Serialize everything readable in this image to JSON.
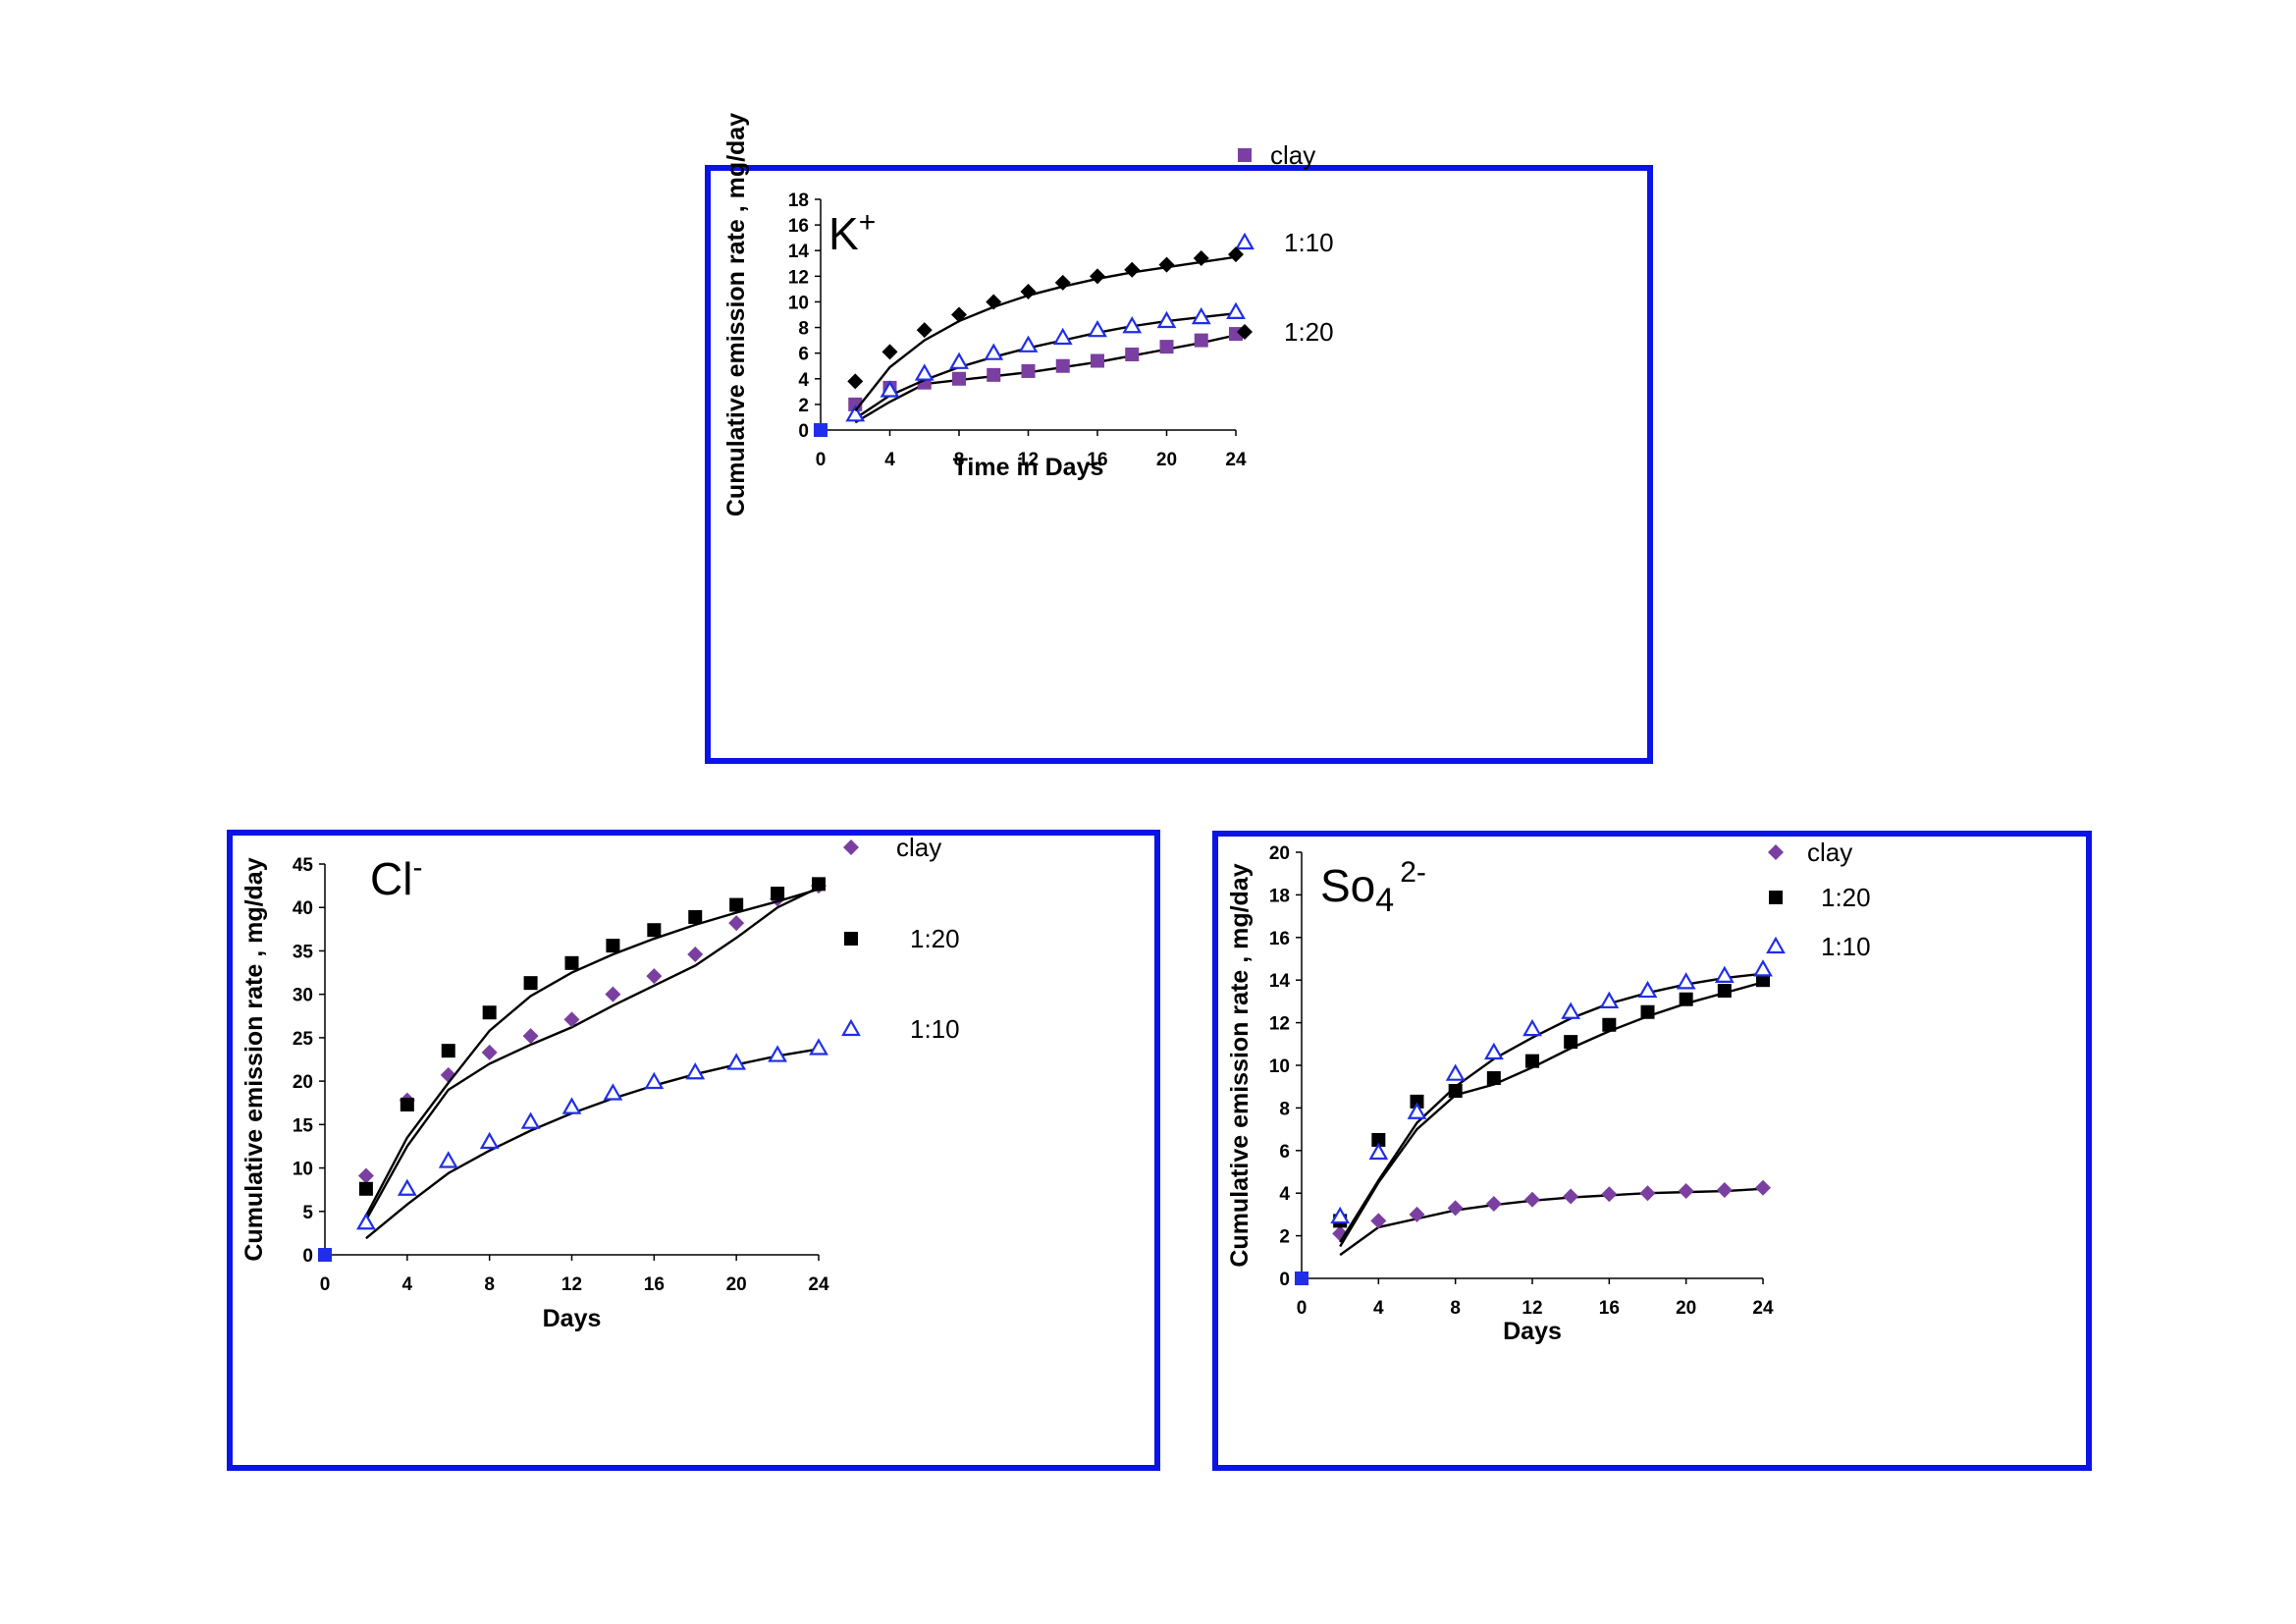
{
  "chart_data": [
    {
      "type": "scatter",
      "ion_label": "K",
      "ion_superscript": "+",
      "xlabel": "Time in Days",
      "ylabel": "Cumulative emission rate , mg/day",
      "xlim": [
        0,
        24
      ],
      "ylim": [
        0,
        18
      ],
      "xticks": [
        0,
        4,
        8,
        12,
        16,
        20,
        24
      ],
      "yticks": [
        0,
        2,
        4,
        6,
        8,
        10,
        12,
        14,
        16,
        18
      ],
      "legend_position": "right",
      "series": [
        {
          "name": "clay",
          "marker": "square",
          "color": "#7a3fa0",
          "x": [
            0,
            2,
            4,
            6,
            8,
            10,
            12,
            14,
            16,
            18,
            20,
            22,
            24
          ],
          "y": [
            0,
            2.0,
            3.3,
            3.7,
            4.0,
            4.3,
            4.6,
            5.0,
            5.4,
            5.9,
            6.5,
            7.0,
            7.5
          ],
          "fit_x": [
            2,
            4,
            6,
            8,
            10,
            12,
            14,
            16,
            18,
            20,
            22,
            24
          ],
          "fit_y": [
            0.6,
            2.2,
            3.6,
            3.9,
            4.2,
            4.5,
            4.9,
            5.3,
            5.8,
            6.3,
            6.8,
            7.4
          ]
        },
        {
          "name": "1:10",
          "marker": "triangle-open",
          "color": "#1f2ee8",
          "x": [
            0,
            2,
            4,
            6,
            8,
            10,
            12,
            14,
            16,
            18,
            20,
            22,
            24
          ],
          "y": [
            0,
            1.2,
            3.1,
            4.4,
            5.3,
            6.0,
            6.6,
            7.2,
            7.8,
            8.1,
            8.5,
            8.8,
            9.2
          ],
          "fit_x": [
            2,
            4,
            6,
            8,
            10,
            12,
            14,
            16,
            18,
            20,
            22,
            24
          ],
          "fit_y": [
            0.9,
            2.7,
            3.9,
            4.9,
            5.7,
            6.4,
            7.0,
            7.6,
            8.1,
            8.5,
            8.8,
            9.1
          ]
        },
        {
          "name": "1:20",
          "marker": "diamond",
          "color": "#000000",
          "x": [
            0,
            2,
            4,
            6,
            8,
            10,
            12,
            14,
            16,
            18,
            20,
            22,
            24
          ],
          "y": [
            0,
            3.8,
            6.1,
            7.8,
            9.0,
            10.0,
            10.8,
            11.5,
            12.0,
            12.5,
            12.9,
            13.4,
            13.7
          ],
          "fit_x": [
            2,
            4,
            6,
            8,
            10,
            12,
            14,
            16,
            18,
            20,
            22,
            24
          ],
          "fit_y": [
            1.5,
            4.9,
            7.0,
            8.5,
            9.6,
            10.5,
            11.2,
            11.8,
            12.3,
            12.7,
            13.1,
            13.5
          ]
        }
      ]
    },
    {
      "type": "scatter",
      "ion_label": "Cl",
      "ion_superscript": "-",
      "xlabel": "Days",
      "ylabel": "Cumulative emission rate , mg/day",
      "xlim": [
        0,
        24
      ],
      "ylim": [
        0,
        45
      ],
      "xticks": [
        0,
        4,
        8,
        12,
        16,
        20,
        24
      ],
      "yticks": [
        0,
        5,
        10,
        15,
        20,
        25,
        30,
        35,
        40,
        45
      ],
      "legend_position": "right",
      "series": [
        {
          "name": "clay",
          "marker": "diamond",
          "color": "#7a3fa0",
          "x": [
            0,
            2,
            4,
            6,
            8,
            10,
            12,
            14,
            16,
            18,
            20,
            22,
            24
          ],
          "y": [
            0,
            9.1,
            17.8,
            20.7,
            23.3,
            25.2,
            27.1,
            30.0,
            32.1,
            34.6,
            38.2,
            41.0,
            42.5
          ],
          "fit_x": [
            2,
            4,
            6,
            8,
            10,
            12,
            14,
            16,
            18,
            20,
            22,
            24
          ],
          "fit_y": [
            4.0,
            12.5,
            19.0,
            22.0,
            24.2,
            26.2,
            28.7,
            31.0,
            33.3,
            36.5,
            40.0,
            42.3
          ]
        },
        {
          "name": "1:20",
          "marker": "square",
          "color": "#000000",
          "x": [
            0,
            2,
            4,
            6,
            8,
            10,
            12,
            14,
            16,
            18,
            20,
            22,
            24
          ],
          "y": [
            0,
            7.6,
            17.3,
            23.5,
            27.9,
            31.3,
            33.6,
            35.6,
            37.4,
            38.9,
            40.3,
            41.6,
            42.7
          ],
          "fit_x": [
            2,
            4,
            6,
            8,
            10,
            12,
            14,
            16,
            18,
            20,
            22,
            24
          ],
          "fit_y": [
            4.5,
            13.5,
            19.8,
            25.8,
            29.8,
            32.5,
            34.6,
            36.4,
            38.0,
            39.4,
            40.7,
            42.1
          ]
        },
        {
          "name": "1:10",
          "marker": "triangle-open",
          "color": "#1f2ee8",
          "x": [
            0,
            2,
            4,
            6,
            8,
            10,
            12,
            14,
            16,
            18,
            20,
            22,
            24
          ],
          "y": [
            0,
            3.7,
            7.6,
            10.8,
            13.0,
            15.3,
            17.0,
            18.6,
            19.9,
            21.0,
            22.1,
            23.0,
            23.8
          ],
          "fit_x": [
            2,
            4,
            6,
            8,
            10,
            12,
            14,
            16,
            18,
            20,
            22,
            24
          ],
          "fit_y": [
            1.9,
            5.8,
            9.4,
            12.0,
            14.3,
            16.3,
            18.0,
            19.5,
            20.8,
            21.9,
            22.9,
            23.7
          ]
        }
      ]
    },
    {
      "type": "scatter",
      "ion_label": "So",
      "ion_subscript": "4",
      "ion_superscript": "2-",
      "xlabel": "Days",
      "ylabel": "Cumulative emission rate , mg/day",
      "xlim": [
        0,
        24
      ],
      "ylim": [
        0,
        20
      ],
      "xticks": [
        0,
        4,
        8,
        12,
        16,
        20,
        24
      ],
      "yticks": [
        0,
        2,
        4,
        6,
        8,
        10,
        12,
        14,
        16,
        18,
        20
      ],
      "legend_position": "top-right",
      "series": [
        {
          "name": "clay",
          "marker": "diamond",
          "color": "#7a3fa0",
          "x": [
            0,
            2,
            4,
            6,
            8,
            10,
            12,
            14,
            16,
            18,
            20,
            22,
            24
          ],
          "y": [
            0,
            2.1,
            2.7,
            3.0,
            3.3,
            3.5,
            3.7,
            3.85,
            3.95,
            4.0,
            4.1,
            4.15,
            4.25
          ],
          "fit_x": [
            2,
            4,
            6,
            8,
            10,
            12,
            14,
            16,
            18,
            20,
            22,
            24
          ],
          "fit_y": [
            1.1,
            2.4,
            2.8,
            3.2,
            3.45,
            3.65,
            3.8,
            3.9,
            4.0,
            4.05,
            4.1,
            4.2
          ]
        },
        {
          "name": "1:20",
          "marker": "square",
          "color": "#000000",
          "x": [
            0,
            2,
            4,
            6,
            8,
            10,
            12,
            14,
            16,
            18,
            20,
            22,
            24
          ],
          "y": [
            0,
            2.7,
            6.5,
            8.3,
            8.8,
            9.4,
            10.2,
            11.1,
            11.9,
            12.5,
            13.1,
            13.5,
            14.0
          ],
          "fit_x": [
            2,
            4,
            6,
            8,
            10,
            12,
            14,
            16,
            18,
            20,
            22,
            24
          ],
          "fit_y": [
            1.5,
            4.5,
            7.0,
            8.6,
            9.1,
            9.9,
            10.8,
            11.6,
            12.3,
            12.9,
            13.4,
            13.9
          ]
        },
        {
          "name": "1:10",
          "marker": "triangle-open",
          "color": "#1f2ee8",
          "x": [
            0,
            2,
            4,
            6,
            8,
            10,
            12,
            14,
            16,
            18,
            20,
            22,
            24
          ],
          "y": [
            0,
            2.9,
            5.9,
            7.8,
            9.6,
            10.6,
            11.7,
            12.5,
            13.0,
            13.5,
            13.9,
            14.2,
            14.5
          ],
          "fit_x": [
            2,
            4,
            6,
            8,
            10,
            12,
            14,
            16,
            18,
            20,
            22,
            24
          ],
          "fit_y": [
            1.7,
            4.6,
            7.3,
            9.0,
            10.3,
            11.3,
            12.2,
            12.9,
            13.4,
            13.8,
            14.1,
            14.3
          ]
        }
      ]
    }
  ]
}
